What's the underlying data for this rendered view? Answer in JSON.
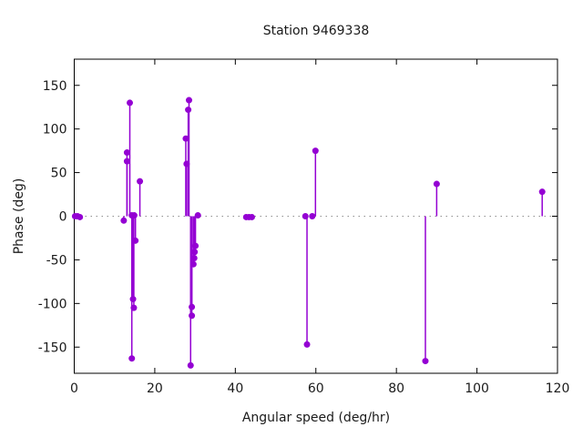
{
  "title": "Station 9469338",
  "colors": {
    "series": "#9400d3",
    "frame": "#000000",
    "zero_line": "#909090",
    "text": "#1a1a1a",
    "background": "#ffffff"
  },
  "chart_data": {
    "type": "scatter",
    "style": "impulses+points",
    "title": "Station 9469338",
    "xlabel": "Angular speed (deg/hr)",
    "ylabel": "Phase (deg)",
    "xlim": [
      0,
      120
    ],
    "ylim": [
      -180,
      180
    ],
    "xticks": [
      0,
      20,
      40,
      60,
      80,
      100,
      120
    ],
    "yticks": [
      -150,
      -100,
      -50,
      0,
      50,
      100,
      150
    ],
    "grid": false,
    "legend": "none",
    "zero_line_dotted": true,
    "series_color": "#9400d3",
    "marker": "filled-circle",
    "points": [
      [
        0.2,
        0
      ],
      [
        0.8,
        0
      ],
      [
        1.4,
        -1
      ],
      [
        13.8,
        130
      ],
      [
        13.1,
        73
      ],
      [
        13.1,
        63
      ],
      [
        16.3,
        40
      ],
      [
        12.3,
        -5
      ],
      [
        14.3,
        1
      ],
      [
        14.9,
        1
      ],
      [
        15.2,
        -28
      ],
      [
        14.6,
        -95
      ],
      [
        14.8,
        -105
      ],
      [
        14.3,
        -163
      ],
      [
        28.5,
        133
      ],
      [
        28.3,
        122
      ],
      [
        27.7,
        89
      ],
      [
        27.9,
        60
      ],
      [
        30.7,
        1
      ],
      [
        30.1,
        -34
      ],
      [
        29.9,
        -41
      ],
      [
        29.8,
        -48
      ],
      [
        29.6,
        -55
      ],
      [
        29.2,
        -104
      ],
      [
        29.2,
        -114
      ],
      [
        28.9,
        -171
      ],
      [
        42.7,
        -1
      ],
      [
        43.4,
        -1
      ],
      [
        44.1,
        -1
      ],
      [
        57.4,
        0
      ],
      [
        59.1,
        0
      ],
      [
        59.9,
        75
      ],
      [
        57.8,
        -147
      ],
      [
        87.2,
        -166
      ],
      [
        90.0,
        37
      ],
      [
        116.2,
        28
      ]
    ]
  }
}
